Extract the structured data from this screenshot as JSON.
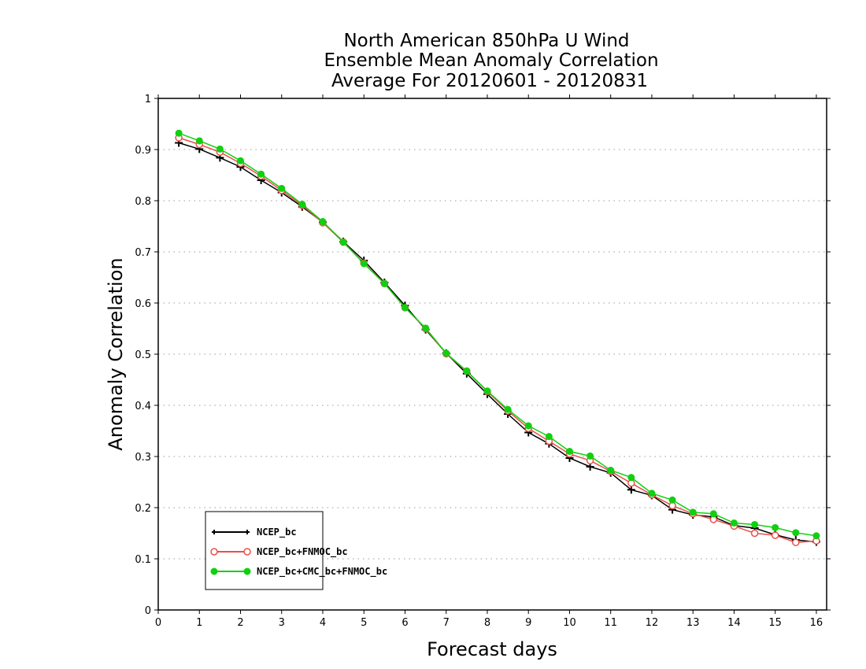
{
  "chart_data": {
    "type": "line",
    "title_lines": [
      "North American 850hPa U Wind",
      "Ensemble Mean Anomaly Correlation",
      "Average For 20120601 - 20120831"
    ],
    "xlabel": "Forecast days",
    "ylabel": "Anomaly Correlation",
    "xlim": [
      0,
      16.25
    ],
    "ylim": [
      0,
      1
    ],
    "xticks": [
      0,
      1,
      2,
      3,
      4,
      5,
      6,
      7,
      8,
      9,
      10,
      11,
      12,
      13,
      14,
      15,
      16
    ],
    "yticks": [
      0,
      0.1,
      0.2,
      0.3,
      0.4,
      0.5,
      0.6,
      0.7,
      0.8,
      0.9,
      1
    ],
    "ytick_labels": [
      "0",
      "0.1",
      "0.2",
      "0.3",
      "0.4",
      "0.5",
      "0.6",
      "0.7",
      "0.8",
      "0.9",
      "1"
    ],
    "grid": "horizontal dotted",
    "legend_position": "bottom-left",
    "x": [
      0.5,
      1,
      1.5,
      2,
      2.5,
      3,
      3.5,
      4,
      4.5,
      5,
      5.5,
      6,
      6.5,
      7,
      7.5,
      8,
      8.5,
      9,
      9.5,
      10,
      10.5,
      11,
      11.5,
      12,
      12.5,
      13,
      13.5,
      14,
      14.5,
      15,
      15.5,
      16
    ],
    "series": [
      {
        "name": "NCEP_bc",
        "color": "#000000",
        "marker": "plus",
        "values": [
          0.913,
          0.901,
          0.884,
          0.866,
          0.84,
          0.816,
          0.788,
          0.758,
          0.72,
          0.683,
          0.64,
          0.595,
          0.548,
          0.502,
          0.462,
          0.422,
          0.383,
          0.347,
          0.325,
          0.297,
          0.28,
          0.268,
          0.235,
          0.224,
          0.196,
          0.186,
          0.182,
          0.165,
          0.16,
          0.147,
          0.137,
          0.133
        ]
      },
      {
        "name": "NCEP_bc+FNMOC_bc",
        "color": "#e8504a",
        "marker": "open-circle",
        "values": [
          0.923,
          0.91,
          0.895,
          0.873,
          0.848,
          0.82,
          0.791,
          0.757,
          0.719,
          0.678,
          0.638,
          0.591,
          0.55,
          0.501,
          0.467,
          0.427,
          0.389,
          0.355,
          0.33,
          0.305,
          0.292,
          0.271,
          0.248,
          0.225,
          0.204,
          0.188,
          0.177,
          0.164,
          0.15,
          0.146,
          0.132,
          0.135
        ]
      },
      {
        "name": "NCEP_bc+CMC_bc+FNMOC_bc",
        "color": "#10d010",
        "marker": "filled-circle",
        "values": [
          0.932,
          0.917,
          0.901,
          0.878,
          0.852,
          0.824,
          0.793,
          0.759,
          0.719,
          0.677,
          0.638,
          0.591,
          0.551,
          0.502,
          0.467,
          0.428,
          0.392,
          0.36,
          0.339,
          0.31,
          0.301,
          0.273,
          0.259,
          0.228,
          0.215,
          0.191,
          0.188,
          0.17,
          0.167,
          0.161,
          0.151,
          0.145
        ]
      }
    ]
  }
}
